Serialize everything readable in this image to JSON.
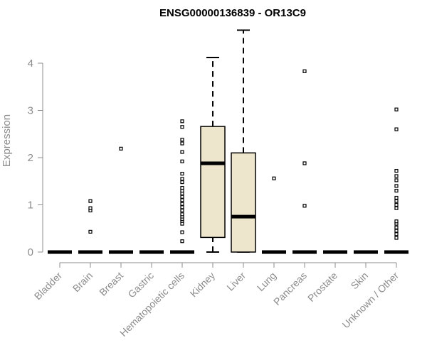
{
  "chart_data": {
    "type": "box",
    "title": "ENSG00000136839 - OR13C9",
    "xlabel": "",
    "ylabel": "Expression",
    "ylim": [
      0,
      4.7
    ],
    "yticks": [
      0,
      1,
      2,
      3,
      4
    ],
    "grid": false,
    "box_fill": "#ede6cc",
    "categories": [
      "Bladder",
      "Brain",
      "Breast",
      "Gastric",
      "Hematopoietic cells",
      "Kidney",
      "Liver",
      "Lung",
      "Pancreas",
      "Prostate",
      "Skin",
      "Unknown / Other"
    ],
    "boxes": [
      {
        "category": "Bladder",
        "whisker_low": 0,
        "q1": 0,
        "median": 0,
        "q3": 0,
        "whisker_high": 0,
        "outliers": []
      },
      {
        "category": "Brain",
        "whisker_low": 0,
        "q1": 0,
        "median": 0,
        "q3": 0,
        "whisker_high": 0,
        "outliers": [
          0.43,
          0.88,
          0.93,
          1.08
        ]
      },
      {
        "category": "Breast",
        "whisker_low": 0,
        "q1": 0,
        "median": 0,
        "q3": 0,
        "whisker_high": 0,
        "outliers": [
          2.19
        ]
      },
      {
        "category": "Gastric",
        "whisker_low": 0,
        "q1": 0,
        "median": 0,
        "q3": 0,
        "whisker_high": 0,
        "outliers": []
      },
      {
        "category": "Hematopoietic cells",
        "whisker_low": 0,
        "q1": 0,
        "median": 0,
        "q3": 0,
        "whisker_high": 0,
        "outliers": [
          0.23,
          0.42,
          0.6,
          0.66,
          0.7,
          0.75,
          0.8,
          0.88,
          0.95,
          1.02,
          1.1,
          1.17,
          1.24,
          1.3,
          1.36,
          1.48,
          1.55,
          1.66,
          1.92,
          2.12,
          2.3,
          2.38,
          2.65,
          2.77
        ]
      },
      {
        "category": "Kidney",
        "whisker_low": 0,
        "q1": 0.31,
        "median": 1.88,
        "q3": 2.66,
        "whisker_high": 4.12,
        "outliers": []
      },
      {
        "category": "Liver",
        "whisker_low": 0,
        "q1": 0,
        "median": 0.75,
        "q3": 2.1,
        "whisker_high": 4.7,
        "outliers": []
      },
      {
        "category": "Lung",
        "whisker_low": 0,
        "q1": 0,
        "median": 0,
        "q3": 0,
        "whisker_high": 0,
        "outliers": [
          1.56
        ]
      },
      {
        "category": "Pancreas",
        "whisker_low": 0,
        "q1": 0,
        "median": 0,
        "q3": 0,
        "whisker_high": 0,
        "outliers": [
          0.98,
          1.88,
          3.83
        ]
      },
      {
        "category": "Prostate",
        "whisker_low": 0,
        "q1": 0,
        "median": 0,
        "q3": 0,
        "whisker_high": 0,
        "outliers": []
      },
      {
        "category": "Skin",
        "whisker_low": 0,
        "q1": 0,
        "median": 0,
        "q3": 0,
        "whisker_high": 0,
        "outliers": []
      },
      {
        "category": "Unknown / Other",
        "whisker_low": 0,
        "q1": 0,
        "median": 0,
        "q3": 0,
        "whisker_high": 0,
        "outliers": [
          0.3,
          0.38,
          0.45,
          0.52,
          0.6,
          0.65,
          0.93,
          1.0,
          1.08,
          1.15,
          1.3,
          1.4,
          1.52,
          1.61,
          1.72,
          2.6,
          3.02
        ]
      }
    ]
  }
}
